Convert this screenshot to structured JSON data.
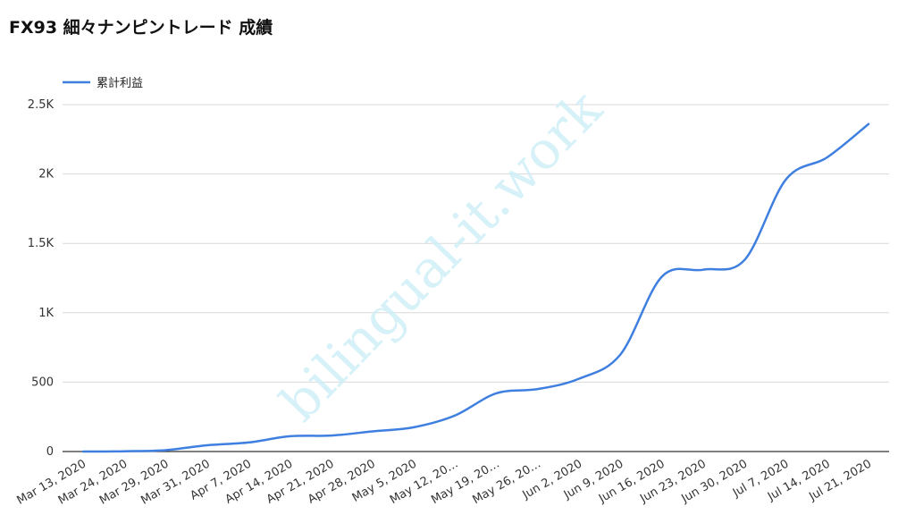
{
  "title": "FX93 細々ナンピントレード 成績",
  "watermark": "bilingual-it.work",
  "colors": {
    "series": "#3f7fe0",
    "grid": "#d9d9d9",
    "axis": "#333333",
    "watermark": "#cfeff7"
  },
  "chart_data": {
    "type": "line",
    "title": "FX93 細々ナンピントレード 成績",
    "xlabel": "",
    "ylabel": "",
    "ylim": [
      0,
      2500
    ],
    "yticks": [
      0,
      500,
      1000,
      1500,
      2000,
      2500
    ],
    "ytick_labels": [
      "0",
      "500",
      "1K",
      "1.5K",
      "2K",
      "2.5K"
    ],
    "grid": true,
    "legend_position": "top-left",
    "x_tick_labels": [
      "Mar 13, 2020",
      "Mar 24, 2020",
      "Mar 29, 2020",
      "Mar 31, 2020",
      "Apr 7, 2020",
      "Apr 14, 2020",
      "Apr 21, 2020",
      "Apr 28, 2020",
      "May 5, 2020",
      "May 12, 20…",
      "May 19, 20…",
      "May 26, 20…",
      "Jun 2, 2020",
      "Jun 9, 2020",
      "Jun 16, 2020",
      "Jun 23, 2020",
      "Jun 30, 2020",
      "Jul 7, 2020",
      "Jul 14, 2020",
      "Jul 21, 2020"
    ],
    "series": [
      {
        "name": "累計利益",
        "values": [
          0,
          2,
          10,
          45,
          65,
          110,
          115,
          145,
          175,
          260,
          420,
          450,
          525,
          700,
          1260,
          1310,
          1380,
          1960,
          2120,
          2360
        ]
      }
    ]
  }
}
